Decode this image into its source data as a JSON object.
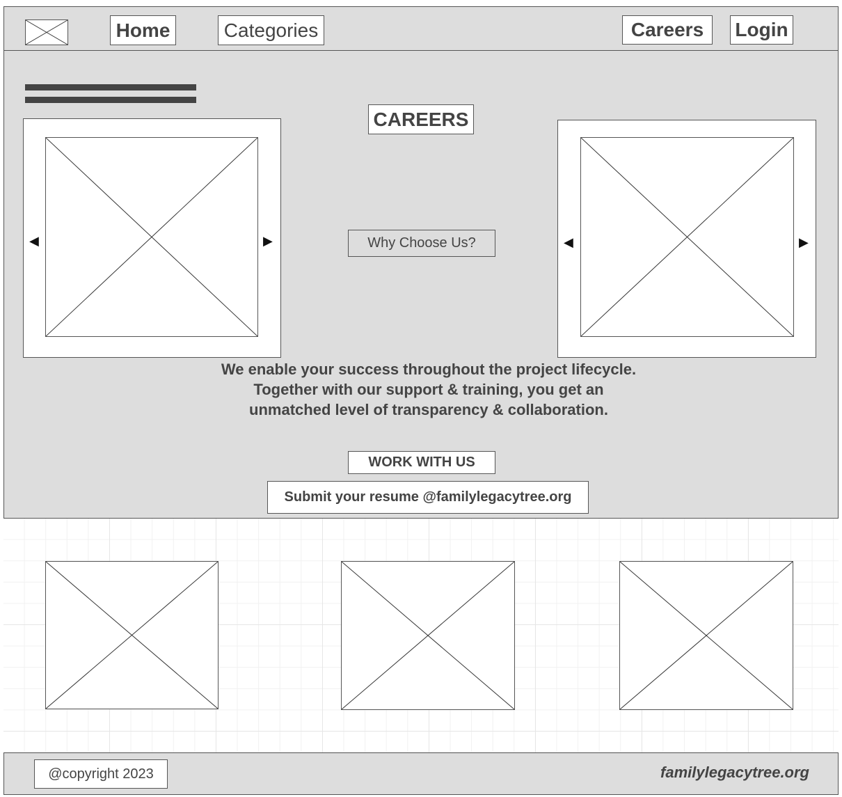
{
  "header": {
    "logo_icon": "image-placeholder-icon",
    "nav": {
      "home": "Home",
      "categories": "Categories",
      "careers": "Careers",
      "login": "Login"
    }
  },
  "hero": {
    "menu_icon": "hamburger-menu-icon",
    "title": "CAREERS",
    "why_button": "Why Choose Us?",
    "left_carousel": {
      "prev": "◀",
      "next": "▶"
    },
    "right_carousel": {
      "prev": "◀",
      "next": "▶"
    },
    "description": "We enable your success throughout the project lifecycle. Together with our support & training, you get an unmatched level of transparency & collaboration.",
    "work_button": "WORK WITH US",
    "resume_button": "Submit your resume @familylegacytree.org"
  },
  "footer": {
    "copyright": "@copyright 2023",
    "site": "familylegacytree.org"
  },
  "colors": {
    "panel_bg": "#dddddd",
    "border": "#555555",
    "text": "#444444"
  }
}
